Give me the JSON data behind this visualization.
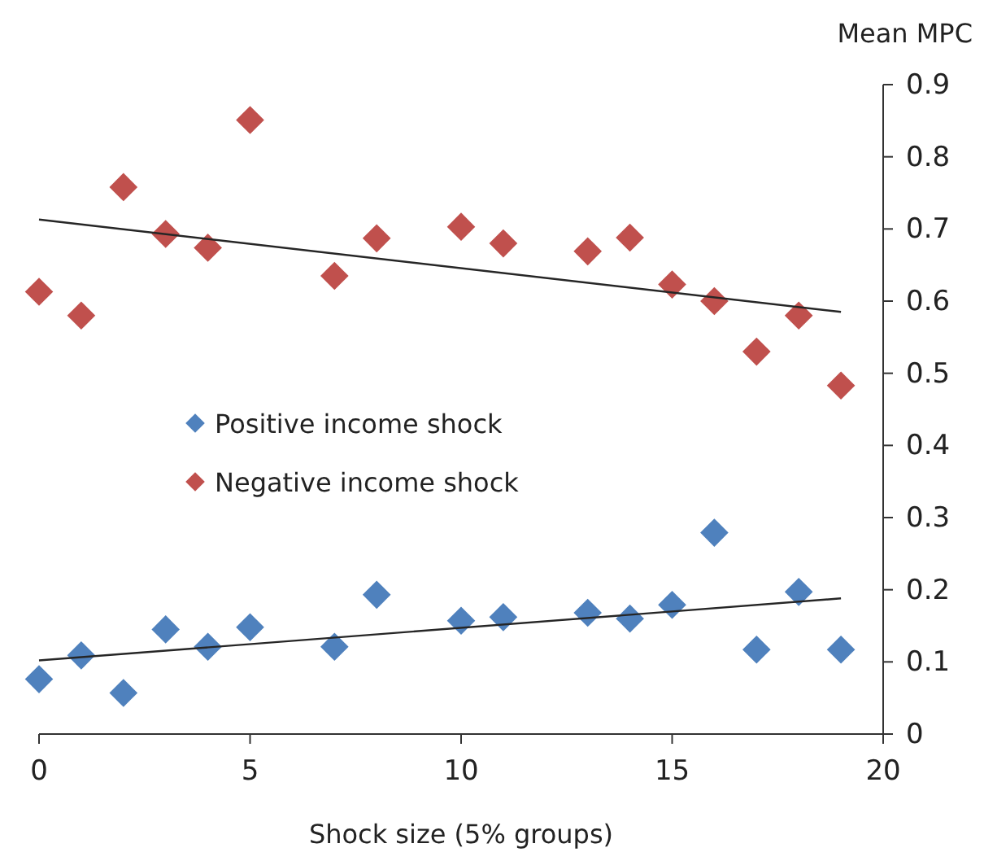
{
  "chart_data": {
    "type": "scatter",
    "xlabel": "Shock size (5% groups)",
    "ylabel": "Mean MPC",
    "xlim": [
      0,
      20
    ],
    "xticks": [
      0,
      5,
      10,
      15,
      20
    ],
    "ylim": [
      0,
      0.9
    ],
    "yticks": [
      0,
      0.1,
      0.2,
      0.3,
      0.4,
      0.5,
      0.6,
      0.7,
      0.8,
      0.9
    ],
    "marker": "diamond",
    "legend": "left",
    "grid": false,
    "series": [
      {
        "name": "Positive income shock",
        "color": "#4f81bd",
        "x": [
          0,
          1,
          2,
          3,
          4,
          5,
          7,
          8,
          10,
          11,
          13,
          14,
          15,
          16,
          17,
          18,
          19
        ],
        "values": [
          0.076,
          0.109,
          0.057,
          0.145,
          0.121,
          0.148,
          0.121,
          0.193,
          0.157,
          0.162,
          0.168,
          0.16,
          0.179,
          0.279,
          0.117,
          0.197,
          0.117
        ]
      },
      {
        "name": "Negative income shock",
        "color": "#c0504d",
        "x": [
          0,
          1,
          2,
          3,
          4,
          5,
          7,
          8,
          10,
          11,
          13,
          14,
          15,
          16,
          17,
          18,
          19
        ],
        "values": [
          0.613,
          0.58,
          0.758,
          0.693,
          0.674,
          0.851,
          0.635,
          0.687,
          0.703,
          0.68,
          0.669,
          0.688,
          0.623,
          0.6,
          0.53,
          0.58,
          0.483
        ]
      },
      {
        "type": "line",
        "color": "#262626",
        "x": [
          0,
          19
        ],
        "values": [
          0.102,
          0.188
        ],
        "marker": "none"
      },
      {
        "type": "line",
        "color": "#262626",
        "x": [
          0,
          19
        ],
        "values": [
          0.713,
          0.585
        ],
        "marker": "none"
      }
    ]
  }
}
